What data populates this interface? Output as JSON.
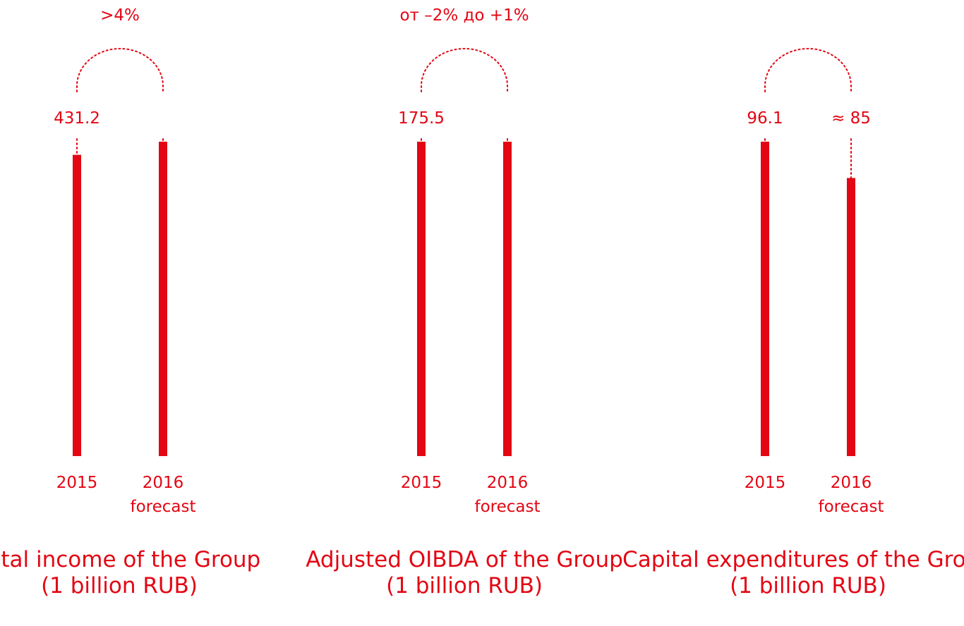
{
  "chart_data": [
    {
      "type": "bar",
      "title": "Total income of the Group",
      "unit_label": "(1 billion RUB)",
      "change_label": ">4%",
      "categories": [
        {
          "line1": "2015",
          "line2": ""
        },
        {
          "line1": "2016",
          "line2": "forecast"
        }
      ],
      "values": [
        431.2,
        450
      ],
      "value_labels": [
        "431.2",
        ""
      ],
      "color": "#e30613"
    },
    {
      "type": "bar",
      "title": "Adjusted OIBDA of the Group",
      "unit_label": "(1 billion RUB)",
      "change_label": "от –2% до +1%",
      "categories": [
        {
          "line1": "2015",
          "line2": ""
        },
        {
          "line1": "2016",
          "line2": "forecast"
        }
      ],
      "values": [
        175.5,
        175.5
      ],
      "value_labels": [
        "175.5",
        ""
      ],
      "color": "#e30613"
    },
    {
      "type": "bar",
      "title": "Capital expenditures of the Group",
      "unit_label": "(1 billion RUB)",
      "change_label": "",
      "categories": [
        {
          "line1": "2015",
          "line2": ""
        },
        {
          "line1": "2016",
          "line2": "forecast"
        }
      ],
      "values": [
        96.1,
        85
      ],
      "value_labels": [
        "96.1",
        "≈ 85"
      ],
      "color": "#e30613"
    }
  ]
}
